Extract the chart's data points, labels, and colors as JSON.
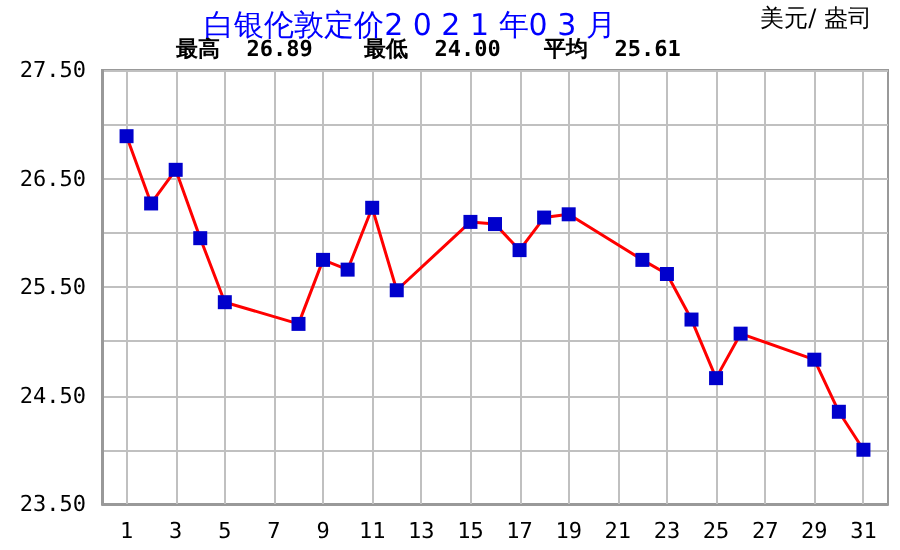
{
  "chart_data": {
    "type": "line",
    "title": "白银伦敦定价2 0 2 1 年0 3 月",
    "ylabel": "美元/ 盎司",
    "annotations": [
      "最高  26.89",
      "最低  24.00",
      "平均  25.61"
    ],
    "x": [
      1,
      2,
      3,
      4,
      5,
      8,
      9,
      10,
      11,
      12,
      15,
      16,
      17,
      18,
      19,
      22,
      23,
      24,
      25,
      26,
      29,
      30,
      31
    ],
    "series": [
      {
        "color": "#ff0000",
        "values": [
          26.89,
          26.27,
          26.58,
          25.95,
          25.36,
          25.16,
          25.75,
          25.66,
          26.23,
          25.47,
          26.1,
          26.08,
          25.84,
          26.14,
          26.17,
          25.75,
          25.62,
          25.2,
          24.66,
          25.07,
          24.83,
          24.35,
          24.0
        ]
      }
    ],
    "marker": "square",
    "xlim": [
      0,
      32
    ],
    "xticks": [
      1,
      3,
      5,
      7,
      9,
      11,
      13,
      15,
      17,
      19,
      21,
      23,
      25,
      27,
      29,
      31
    ],
    "ylim": [
      23.5,
      27.5
    ],
    "yticks": [
      {
        "value": 23.5,
        "label": "23.50"
      },
      {
        "value": 24,
        "label": null
      },
      {
        "value": 24.5,
        "label": "24.50"
      },
      {
        "value": 25,
        "label": null
      },
      {
        "value": 25.5,
        "label": "25.50"
      },
      {
        "value": 26,
        "label": null
      },
      {
        "value": 26.5,
        "label": "26.50"
      },
      {
        "value": 27,
        "label": null
      },
      {
        "value": 27.5,
        "label": "27.50"
      }
    ],
    "grid": true
  }
}
